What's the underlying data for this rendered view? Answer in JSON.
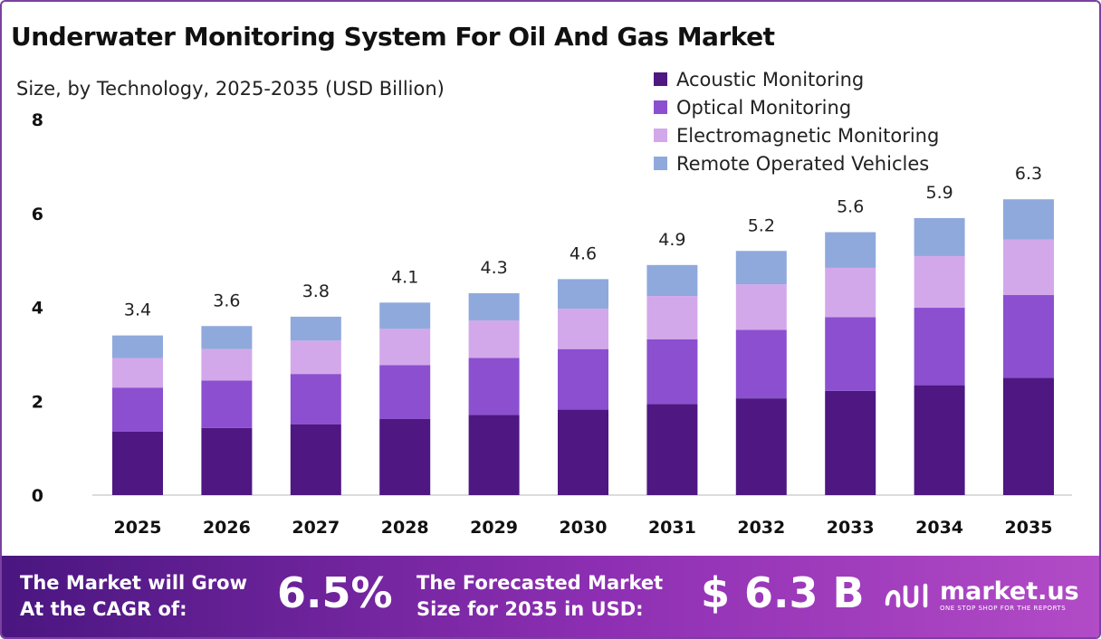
{
  "header": {
    "title": "Underwater Monitoring System For Oil And Gas Market",
    "subtitle": "Size, by Technology, 2025-2035 (USD Billion)"
  },
  "colors": {
    "acoustic": "#4e1782",
    "optical": "#8b4fd0",
    "electromagnetic": "#d3a8ea",
    "rov": "#8fa9dc",
    "footer_start": "#4a1680",
    "footer_end": "#b24bc6"
  },
  "chart_data": {
    "type": "bar",
    "stacked": true,
    "categories": [
      "2025",
      "2026",
      "2027",
      "2028",
      "2029",
      "2030",
      "2031",
      "2032",
      "2033",
      "2034",
      "2035"
    ],
    "series": [
      {
        "name": "Acoustic Monitoring",
        "values": [
          1.35,
          1.43,
          1.51,
          1.62,
          1.71,
          1.82,
          1.94,
          2.06,
          2.22,
          2.34,
          2.5
        ]
      },
      {
        "name": "Optical Monitoring",
        "values": [
          0.94,
          1.01,
          1.07,
          1.15,
          1.21,
          1.29,
          1.38,
          1.46,
          1.57,
          1.65,
          1.76
        ]
      },
      {
        "name": "Electromagnetic Monitoring",
        "values": [
          0.63,
          0.67,
          0.71,
          0.77,
          0.8,
          0.86,
          0.92,
          0.97,
          1.05,
          1.1,
          1.18
        ]
      },
      {
        "name": "Remote Operated Vehicles",
        "values": [
          0.48,
          0.49,
          0.51,
          0.56,
          0.58,
          0.63,
          0.66,
          0.71,
          0.76,
          0.81,
          0.86
        ]
      }
    ],
    "totals": [
      "3.4",
      "3.6",
      "3.8",
      "4.1",
      "4.3",
      "4.6",
      "4.9",
      "5.2",
      "5.6",
      "5.9",
      "6.3"
    ],
    "yticks": [
      "0",
      "2",
      "4",
      "6",
      "8"
    ],
    "ylim": [
      0,
      8
    ],
    "grid": false,
    "legend_position": "top-right"
  },
  "footer": {
    "cagr_label_line1": "The Market will Grow",
    "cagr_label_line2": "At the CAGR of:",
    "cagr_value": "6.5%",
    "size_label_line1": "The Forecasted Market",
    "size_label_line2": "Size for 2035 in USD:",
    "size_value": "$ 6.3 B",
    "brand_name": "market.us",
    "brand_tagline": "ONE STOP SHOP FOR THE REPORTS"
  }
}
